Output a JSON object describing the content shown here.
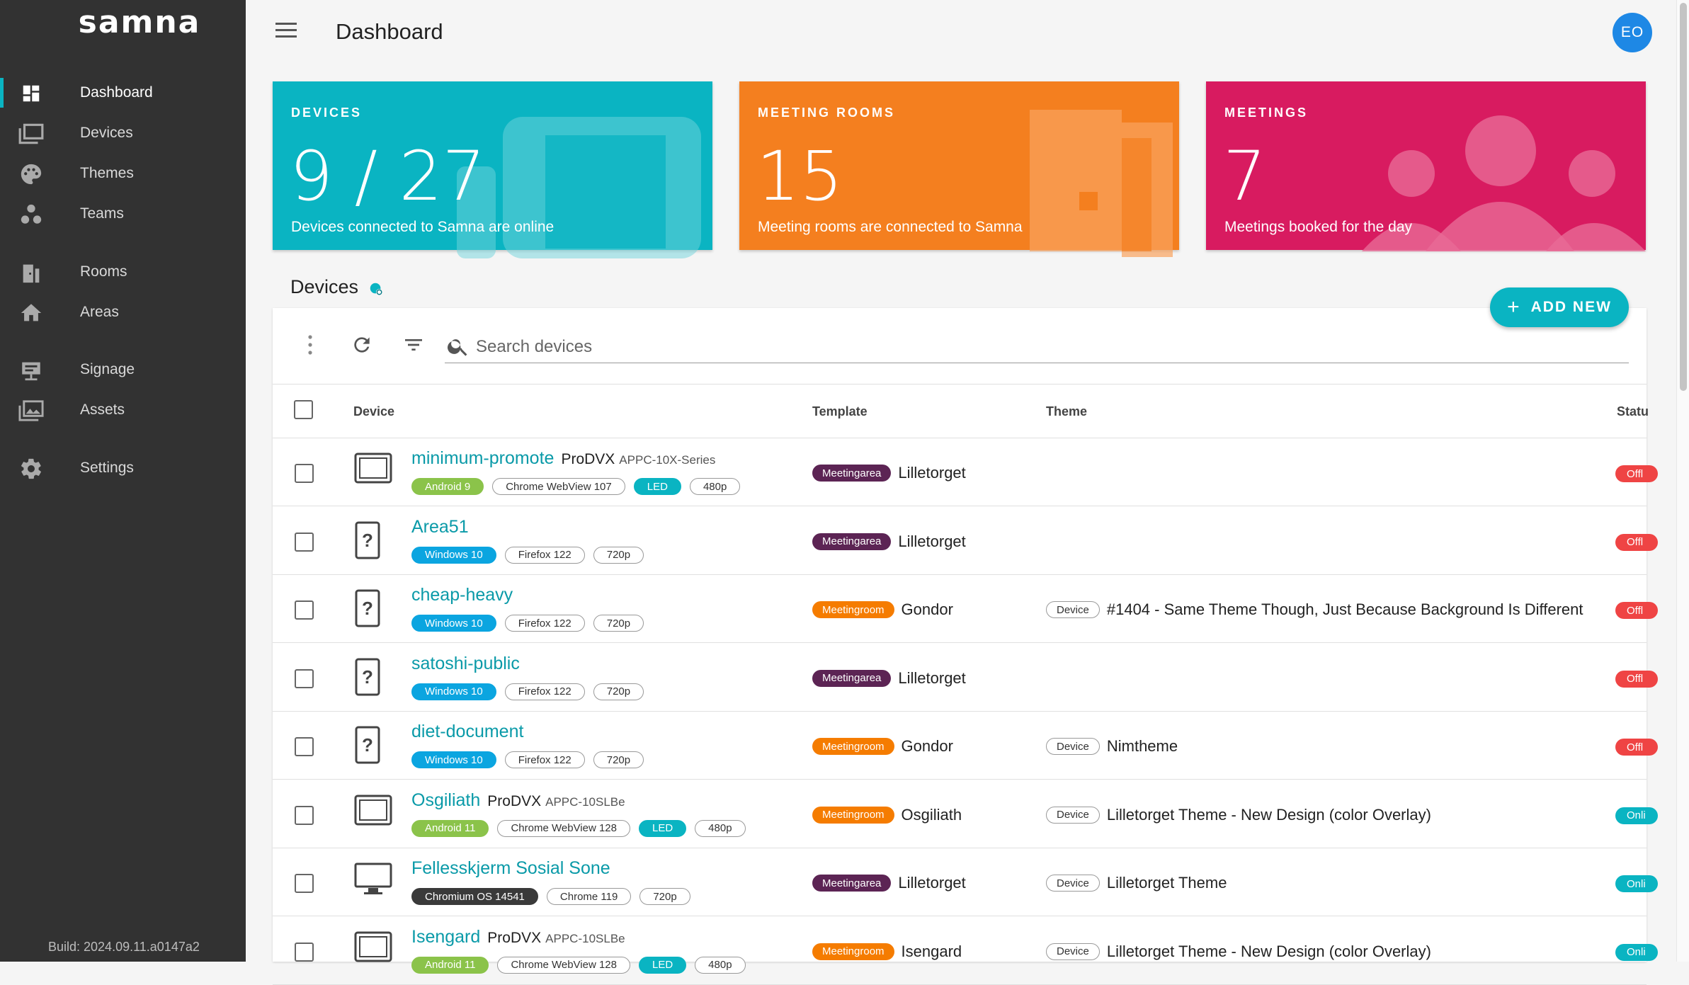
{
  "app": {
    "logo": "samna",
    "build": "Build: 2024.09.11.a0147a2"
  },
  "sidebar": {
    "items": [
      {
        "label": "Dashboard",
        "icon": "dashboard-icon",
        "active": true
      },
      {
        "label": "Devices",
        "icon": "devices-icon"
      },
      {
        "label": "Themes",
        "icon": "palette-icon"
      },
      {
        "label": "Teams",
        "icon": "teams-icon"
      },
      {
        "label": "Rooms",
        "icon": "rooms-icon"
      },
      {
        "label": "Areas",
        "icon": "home-icon"
      },
      {
        "label": "Signage",
        "icon": "signage-icon"
      },
      {
        "label": "Assets",
        "icon": "assets-icon"
      },
      {
        "label": "Settings",
        "icon": "gear-icon"
      }
    ]
  },
  "header": {
    "title": "Dashboard",
    "avatar_initials": "EO"
  },
  "cards": [
    {
      "title": "DEVICES",
      "value": "9 / 27",
      "subtitle": "Devices connected to Samna are online",
      "color": "#0ab4c2"
    },
    {
      "title": "MEETING ROOMS",
      "value": "15",
      "subtitle": "Meeting rooms are connected to Samna",
      "color": "#f47f1f"
    },
    {
      "title": "MEETINGS",
      "value": "7",
      "subtitle": "Meetings booked for the day",
      "color": "#d81b60"
    }
  ],
  "devices_section": {
    "title": "Devices",
    "add_new_label": "ADD NEW",
    "search_placeholder": "Search devices",
    "columns": {
      "device": "Device",
      "template": "Template",
      "theme": "Theme",
      "status": "Statu"
    }
  },
  "rows": [
    {
      "name": "minimum-promote",
      "brand": "ProDVX",
      "model": "APPC-10X-Series",
      "kind": "tablet",
      "tags": [
        "Android 9",
        "Chrome WebView 107",
        "LED",
        "480p"
      ],
      "template_type": "Meetingarea",
      "template_name": "Lilletorget",
      "theme_type": "",
      "theme_name": "",
      "status": "Offl"
    },
    {
      "name": "Area51",
      "brand": "",
      "model": "",
      "kind": "unknown",
      "tags": [
        "Windows 10",
        "Firefox 122",
        "720p"
      ],
      "template_type": "Meetingarea",
      "template_name": "Lilletorget",
      "theme_type": "",
      "theme_name": "",
      "status": "Offl"
    },
    {
      "name": "cheap-heavy",
      "brand": "",
      "model": "",
      "kind": "unknown",
      "tags": [
        "Windows 10",
        "Firefox 122",
        "720p"
      ],
      "template_type": "Meetingroom",
      "template_name": "Gondor",
      "theme_type": "Device",
      "theme_name": "#1404 - Same Theme Though, Just Because Background Is Different",
      "status": "Offl"
    },
    {
      "name": "satoshi-public",
      "brand": "",
      "model": "",
      "kind": "unknown",
      "tags": [
        "Windows 10",
        "Firefox 122",
        "720p"
      ],
      "template_type": "Meetingarea",
      "template_name": "Lilletorget",
      "theme_type": "",
      "theme_name": "",
      "status": "Offl"
    },
    {
      "name": "diet-document",
      "brand": "",
      "model": "",
      "kind": "unknown",
      "tags": [
        "Windows 10",
        "Firefox 122",
        "720p"
      ],
      "template_type": "Meetingroom",
      "template_name": "Gondor",
      "theme_type": "Device",
      "theme_name": "Nimtheme",
      "status": "Offl"
    },
    {
      "name": "Osgiliath",
      "brand": "ProDVX",
      "model": "APPC-10SLBe",
      "kind": "tablet",
      "tags": [
        "Android 11",
        "Chrome WebView 128",
        "LED",
        "480p"
      ],
      "template_type": "Meetingroom",
      "template_name": "Osgiliath",
      "theme_type": "Device",
      "theme_name": "Lilletorget Theme - New Design (color Overlay)",
      "status": "Onli"
    },
    {
      "name": "Fellesskjerm Sosial Sone",
      "brand": "",
      "model": "",
      "kind": "monitor",
      "tags": [
        "Chromium OS 14541",
        "Chrome 119",
        "720p"
      ],
      "template_type": "Meetingarea",
      "template_name": "Lilletorget",
      "theme_type": "Device",
      "theme_name": "Lilletorget Theme",
      "status": "Onli"
    },
    {
      "name": "Isengard",
      "brand": "ProDVX",
      "model": "APPC-10SLBe",
      "kind": "tablet",
      "tags": [
        "Android 11",
        "Chrome WebView 128",
        "LED",
        "480p"
      ],
      "template_type": "Meetingroom",
      "template_name": "Isengard",
      "theme_type": "Device",
      "theme_name": "Lilletorget Theme - New Design (color Overlay)",
      "status": "Onli"
    }
  ]
}
